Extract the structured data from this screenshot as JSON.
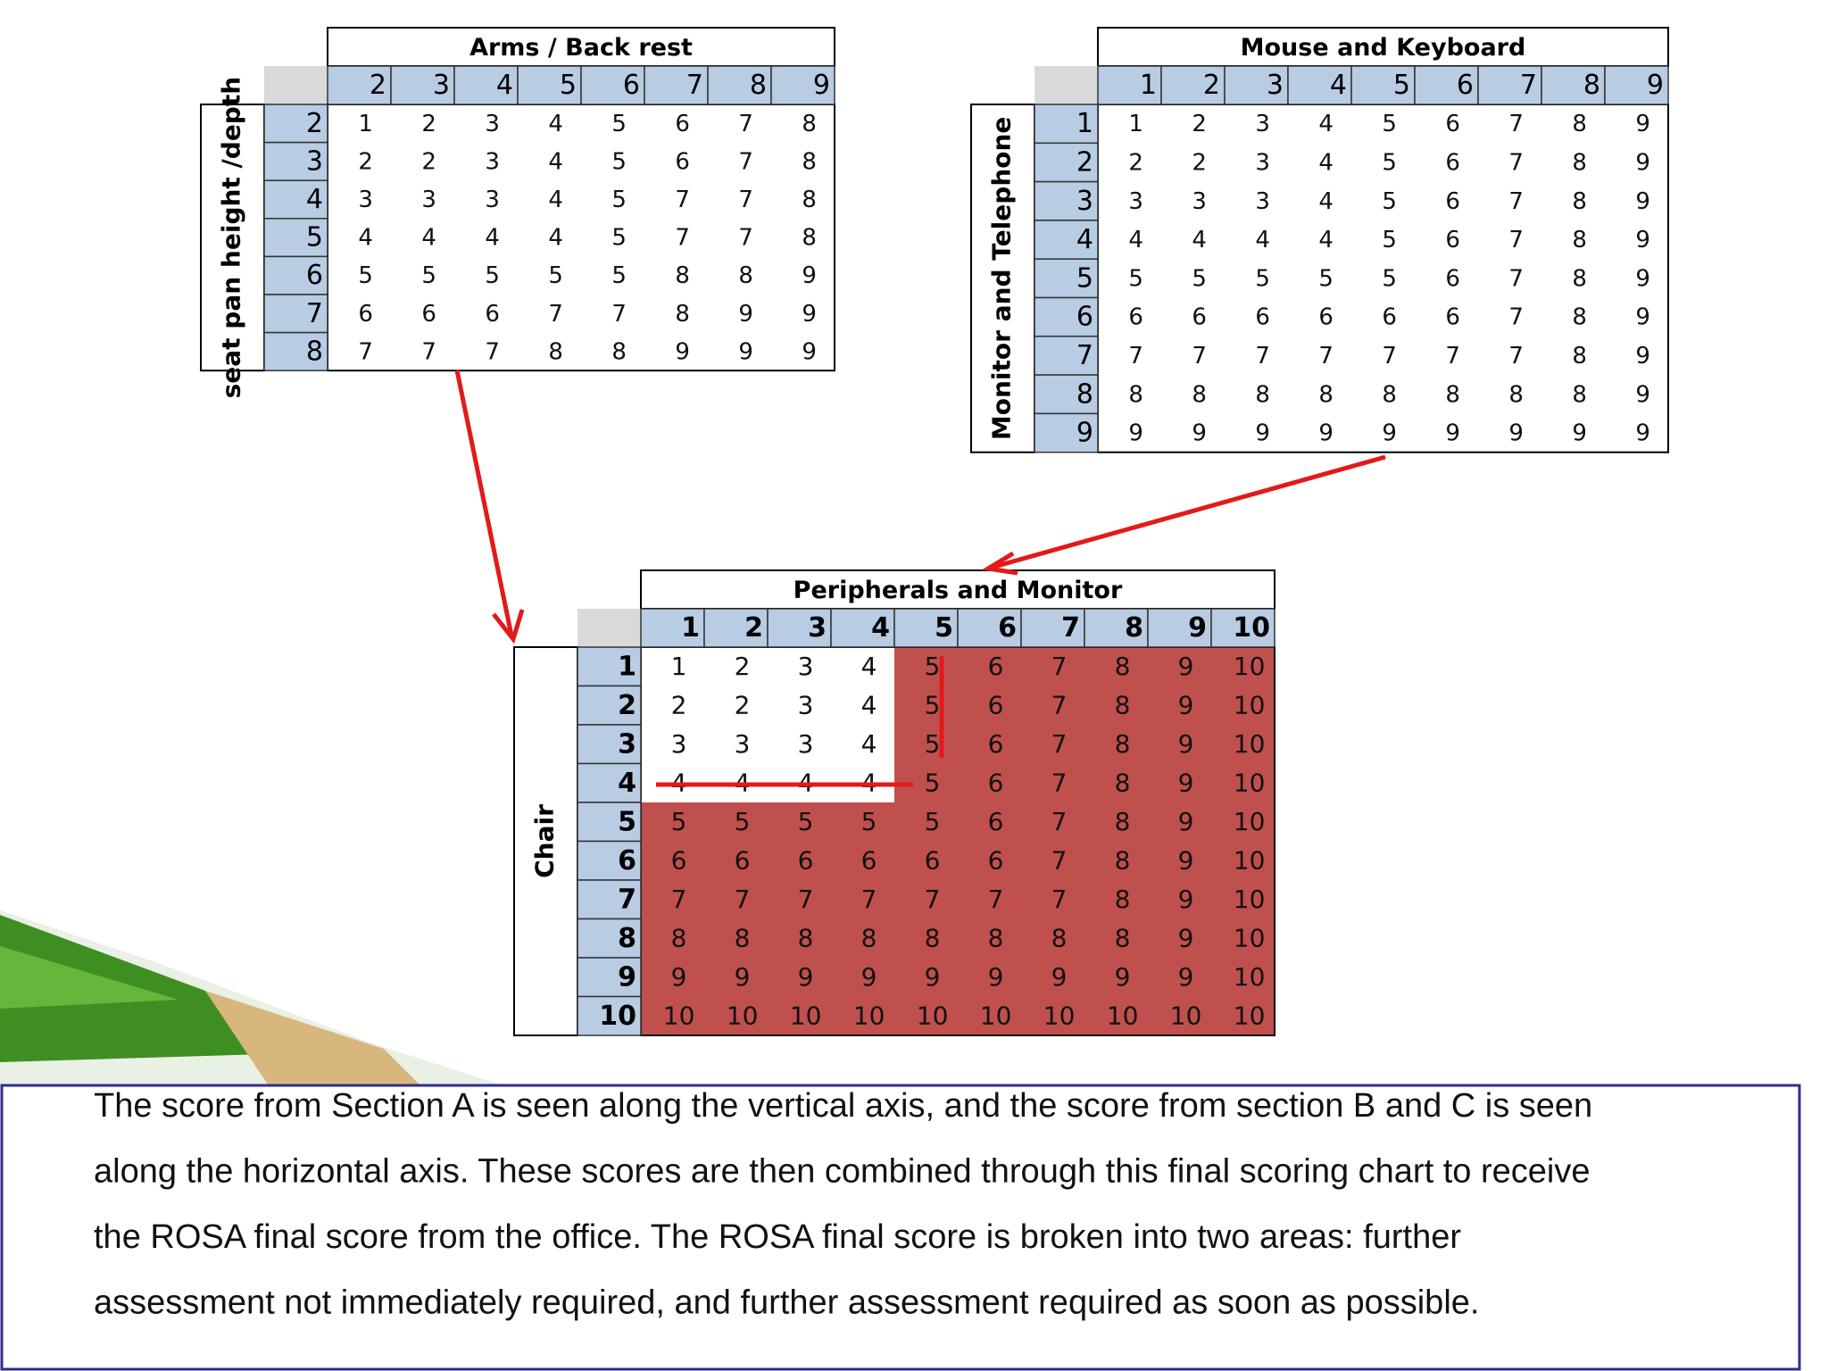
{
  "tables": [
    {
      "title": "Arms / Back rest",
      "row_label": "seat pan height /depth",
      "columns": [
        2,
        3,
        4,
        5,
        6,
        7,
        8,
        9
      ],
      "rows": [
        {
          "label": 2,
          "cells": [
            1,
            2,
            3,
            4,
            5,
            6,
            7,
            8
          ]
        },
        {
          "label": 3,
          "cells": [
            2,
            2,
            3,
            4,
            5,
            6,
            7,
            8
          ]
        },
        {
          "label": 4,
          "cells": [
            3,
            3,
            3,
            4,
            5,
            7,
            7,
            8
          ]
        },
        {
          "label": 5,
          "cells": [
            4,
            4,
            4,
            4,
            5,
            7,
            7,
            8
          ]
        },
        {
          "label": 6,
          "cells": [
            5,
            5,
            5,
            5,
            5,
            8,
            8,
            9
          ]
        },
        {
          "label": 7,
          "cells": [
            6,
            6,
            6,
            7,
            7,
            8,
            9,
            9
          ]
        },
        {
          "label": 8,
          "cells": [
            7,
            7,
            7,
            8,
            8,
            9,
            9,
            9
          ]
        }
      ]
    },
    {
      "title": "Mouse and Keyboard",
      "row_label": "Monitor and Telephone",
      "columns": [
        1,
        2,
        3,
        4,
        5,
        6,
        7,
        8,
        9
      ],
      "rows": [
        {
          "label": 1,
          "cells": [
            1,
            2,
            3,
            4,
            5,
            6,
            7,
            8,
            9
          ]
        },
        {
          "label": 2,
          "cells": [
            2,
            2,
            3,
            4,
            5,
            6,
            7,
            8,
            9
          ]
        },
        {
          "label": 3,
          "cells": [
            3,
            3,
            3,
            4,
            5,
            6,
            7,
            8,
            9
          ]
        },
        {
          "label": 4,
          "cells": [
            4,
            4,
            4,
            4,
            5,
            6,
            7,
            8,
            9
          ]
        },
        {
          "label": 5,
          "cells": [
            5,
            5,
            5,
            5,
            5,
            6,
            7,
            8,
            9
          ]
        },
        {
          "label": 6,
          "cells": [
            6,
            6,
            6,
            6,
            6,
            6,
            7,
            8,
            9
          ]
        },
        {
          "label": 7,
          "cells": [
            7,
            7,
            7,
            7,
            7,
            7,
            7,
            8,
            9
          ]
        },
        {
          "label": 8,
          "cells": [
            8,
            8,
            8,
            8,
            8,
            8,
            8,
            8,
            9
          ]
        },
        {
          "label": 9,
          "cells": [
            9,
            9,
            9,
            9,
            9,
            9,
            9,
            9,
            9
          ]
        }
      ]
    },
    {
      "title": "Peripherals and Monitor",
      "row_label": "Chair",
      "columns": [
        1,
        2,
        3,
        4,
        5,
        6,
        7,
        8,
        9,
        10
      ],
      "rows": [
        {
          "label": 1,
          "cells": [
            1,
            2,
            3,
            4,
            5,
            6,
            7,
            8,
            9,
            10
          ]
        },
        {
          "label": 2,
          "cells": [
            2,
            2,
            3,
            4,
            5,
            6,
            7,
            8,
            9,
            10
          ]
        },
        {
          "label": 3,
          "cells": [
            3,
            3,
            3,
            4,
            5,
            6,
            7,
            8,
            9,
            10
          ]
        },
        {
          "label": 4,
          "cells": [
            4,
            4,
            4,
            4,
            5,
            6,
            7,
            8,
            9,
            10
          ]
        },
        {
          "label": 5,
          "cells": [
            5,
            5,
            5,
            5,
            5,
            6,
            7,
            8,
            9,
            10
          ]
        },
        {
          "label": 6,
          "cells": [
            6,
            6,
            6,
            6,
            6,
            6,
            7,
            8,
            9,
            10
          ]
        },
        {
          "label": 7,
          "cells": [
            7,
            7,
            7,
            7,
            7,
            7,
            7,
            8,
            9,
            10
          ]
        },
        {
          "label": 8,
          "cells": [
            8,
            8,
            8,
            8,
            8,
            8,
            8,
            8,
            9,
            10
          ]
        },
        {
          "label": 9,
          "cells": [
            9,
            9,
            9,
            9,
            9,
            9,
            9,
            9,
            9,
            10
          ]
        },
        {
          "label": 10,
          "cells": [
            10,
            10,
            10,
            10,
            10,
            10,
            10,
            10,
            10,
            10
          ]
        }
      ]
    }
  ],
  "text": {
    "lines": [
      "The score from Section A is seen along the vertical axis, and the score from section B and C is seen",
      "along the  horizontal axis.  These scores are then combined through this final scoring chart to receive",
      "the ROSA final score from  the office. The ROSA final score is broken into two areas:  further",
      "assessment not  immediately required, and further assessment  required as soon as possible."
    ]
  }
}
